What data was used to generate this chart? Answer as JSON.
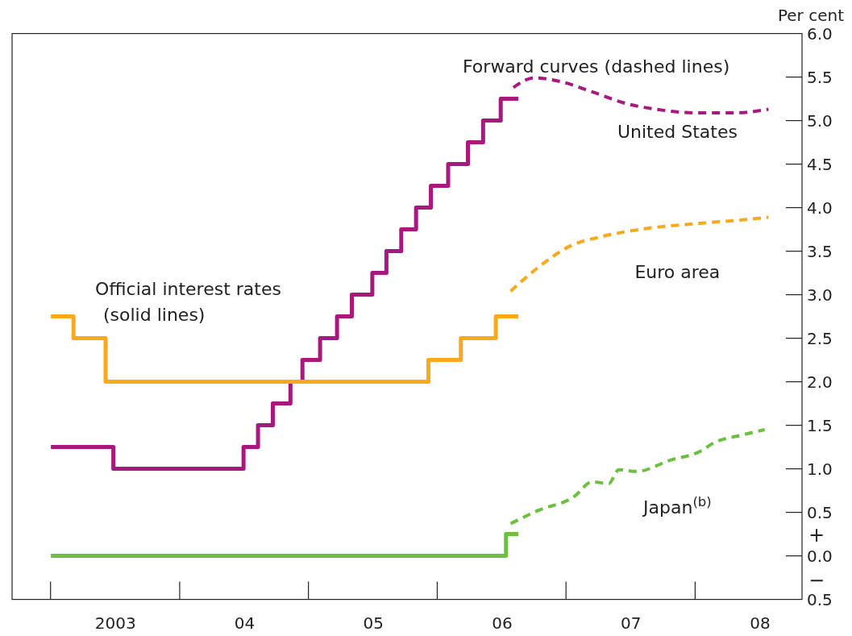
{
  "chart_data": {
    "type": "line",
    "ylabel": "Per cent",
    "xlim": [
      "2002-09-13",
      "2008-10-30"
    ],
    "xticks": [
      {
        "value": "2003-07-02",
        "label": "2003"
      },
      {
        "value": "2004-07-02",
        "label": "04"
      },
      {
        "value": "2005-07-02",
        "label": "05"
      },
      {
        "value": "2006-07-02",
        "label": "06"
      },
      {
        "value": "2007-07-02",
        "label": "07"
      },
      {
        "value": "2008-07-02",
        "label": "08"
      }
    ],
    "ylim": [
      -0.5,
      6.0
    ],
    "yticks": [
      {
        "value": -0.5,
        "label": "0.5"
      },
      {
        "value": 0,
        "label": "0.0"
      },
      {
        "value": 0.5,
        "label": "0.5"
      },
      {
        "value": 1,
        "label": "1.0"
      },
      {
        "value": 1.5,
        "label": "1.5"
      },
      {
        "value": 2,
        "label": "2.0"
      },
      {
        "value": 2.5,
        "label": "2.5"
      },
      {
        "value": 3,
        "label": "3.0"
      },
      {
        "value": 3.5,
        "label": "3.5"
      },
      {
        "value": 4,
        "label": "4.0"
      },
      {
        "value": 4.5,
        "label": "4.5"
      },
      {
        "value": 5,
        "label": "5.0"
      },
      {
        "value": 5.5,
        "label": "5.5"
      },
      {
        "value": 6,
        "label": "6.0"
      }
    ],
    "grid": false,
    "legend": false,
    "annotations": [
      "Official interest rates\n(solid lines)",
      "Forward curves  (dashed lines)",
      "+",
      "−"
    ],
    "series": [
      {
        "type": "step",
        "color": "#a8197f",
        "line_style": "solid",
        "x": [
          "2003-01-01",
          "2003-06-27",
          "2004-06-30",
          "2004-08-10",
          "2004-09-21",
          "2004-11-10",
          "2004-12-14",
          "2005-02-02",
          "2005-03-22",
          "2005-05-03",
          "2005-06-30",
          "2005-08-09",
          "2005-09-20",
          "2005-11-01",
          "2005-12-13",
          "2006-01-31",
          "2006-03-28",
          "2006-05-10",
          "2006-06-29",
          "2006-08-18"
        ],
        "values": [
          1.25,
          1.0,
          1.25,
          1.5,
          1.75,
          2.0,
          2.25,
          2.5,
          2.75,
          3.0,
          3.25,
          3.5,
          3.75,
          4.0,
          4.25,
          4.5,
          4.75,
          5.0,
          5.25,
          5.25
        ]
      },
      {
        "type": "step",
        "color": "#f9a91b",
        "line_style": "solid",
        "x": [
          "2003-01-01",
          "2003-03-06",
          "2003-06-05",
          "2005-12-06",
          "2006-03-08",
          "2006-06-15",
          "2006-08-18"
        ],
        "values": [
          2.75,
          2.5,
          2.0,
          2.25,
          2.5,
          2.75,
          2.75
        ]
      },
      {
        "type": "step",
        "color": "#6cbf3f",
        "line_style": "solid",
        "x": [
          "2003-01-01",
          "2006-07-14",
          "2006-08-18"
        ],
        "values": [
          0.0,
          0.25,
          0.25
        ]
      },
      {
        "type": "line",
        "name": "United States",
        "color": "#a8197f",
        "line_style": "dashed",
        "x": [
          "2006-08-04",
          "2006-10-01",
          "2006-12-24",
          "2007-03-15",
          "2007-06-25",
          "2007-09-13",
          "2007-12-24",
          "2008-04-27",
          "2008-07-27"
        ],
        "values": [
          5.38,
          5.49,
          5.44,
          5.33,
          5.19,
          5.13,
          5.09,
          5.09,
          5.13
        ]
      },
      {
        "type": "line",
        "name": "Euro area",
        "color": "#f9a91b",
        "line_style": "dashed",
        "x": [
          "2006-07-27",
          "2006-10-12",
          "2007-01-12",
          "2007-04-14",
          "2007-08-15",
          "2008-01-15",
          "2008-05-15",
          "2008-07-27"
        ],
        "values": [
          3.04,
          3.31,
          3.56,
          3.67,
          3.76,
          3.82,
          3.86,
          3.89
        ]
      },
      {
        "type": "line",
        "name": "Japan$^{(b)}$",
        "color": "#6cbf3f",
        "line_style": "dashed",
        "x": [
          "2006-07-27",
          "2006-10-12",
          "2007-01-23",
          "2007-03-15",
          "2007-05-01",
          "2007-05-30",
          "2007-07-19",
          "2007-10-23",
          "2008-01-15",
          "2008-02-24",
          "2008-05-15",
          "2008-07-16"
        ],
        "values": [
          0.37,
          0.52,
          0.68,
          0.85,
          0.83,
          0.99,
          0.97,
          1.1,
          1.2,
          1.3,
          1.39,
          1.45
        ]
      }
    ]
  }
}
